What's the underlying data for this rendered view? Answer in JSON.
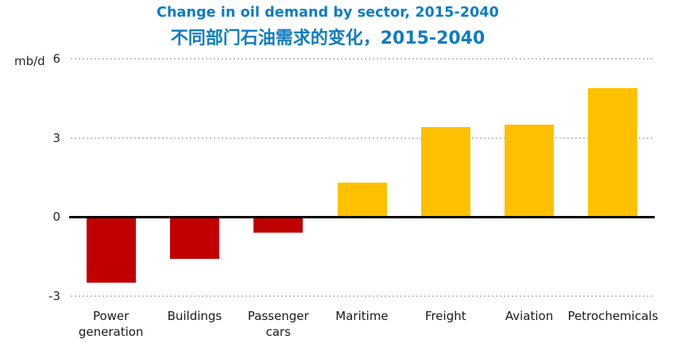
{
  "header": {
    "title_color": "#0e7cc4"
  },
  "chart_data": {
    "type": "bar",
    "title": "Change in oil demand by sector, 2015-2040",
    "subtitle": "不同部门石油需求的变化，2015-2040",
    "unit_label": "mb/d",
    "categories": [
      "Power generation",
      "Buildings",
      "Passenger cars",
      "Maritime",
      "Freight",
      "Aviation",
      "Petrochemicals"
    ],
    "values": [
      -2.5,
      -1.6,
      -0.6,
      1.3,
      3.4,
      3.5,
      4.9
    ],
    "ylim": [
      -3,
      6
    ],
    "yticks": [
      6,
      3,
      0,
      -3
    ],
    "ylabel": "",
    "xlabel": "",
    "grid": "horizontal-dotted",
    "legend": "none",
    "colors": {
      "positive_bar": "#ffc000",
      "negative_bar": "#c00000",
      "gridline": "#c6c6c6",
      "zero_line": "#000000",
      "tick_text": "#262626",
      "category_text": "#1a1a1a"
    }
  }
}
